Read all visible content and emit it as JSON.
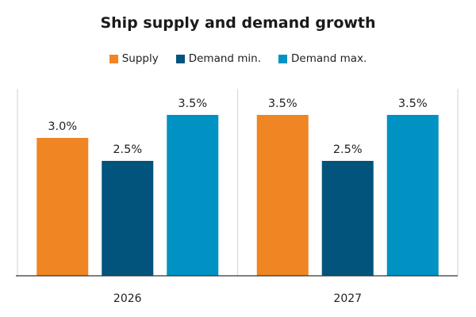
{
  "chart_data": {
    "type": "bar",
    "title": "Ship supply and demand growth",
    "xlabel": "",
    "ylabel": "",
    "categories": [
      "2026",
      "2027"
    ],
    "series": [
      {
        "name": "Supply",
        "color": "#ef8523",
        "values": [
          3.0,
          3.5
        ],
        "labels": [
          "3.0%",
          "3.5%"
        ]
      },
      {
        "name": "Demand min.",
        "color": "#02547c",
        "values": [
          2.5,
          2.5
        ],
        "labels": [
          "2.5%",
          "2.5%"
        ]
      },
      {
        "name": "Demand max.",
        "color": "#0092c2",
        "values": [
          3.5,
          3.5
        ],
        "labels": [
          "3.5%",
          "3.5%"
        ]
      }
    ],
    "ylim": [
      0,
      4.0
    ],
    "grid": false,
    "legend_position": "top-center",
    "y_axis_visible": false
  }
}
